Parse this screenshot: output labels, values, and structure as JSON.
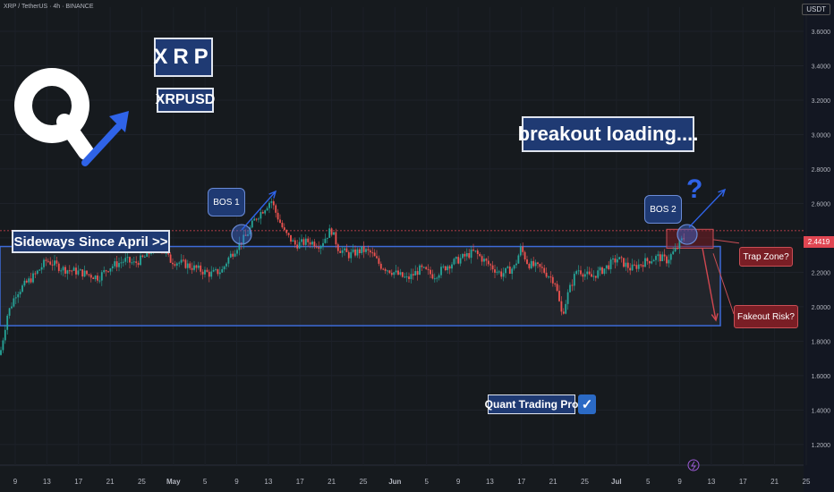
{
  "header": {
    "symbol_line": "XRP / TetherUS · 4h · BINANCE",
    "unit": "USDT"
  },
  "annotations": {
    "ticker_big": "XRP",
    "ticker_pair": "XRPUSD",
    "breakout": "breakout loading....",
    "sideways": "Sideways Since April >>",
    "bos1": "BOS 1",
    "bos2": "BOS 2",
    "question": "?",
    "trap_zone": "Trap Zone?",
    "fakeout": "Fakeout Risk?",
    "brand": "Quant Trading Pro",
    "check": "✓",
    "current_price": "2.4419"
  },
  "colors": {
    "background": "#161a1e",
    "bull": "#26a69a",
    "bear": "#ef5350",
    "range_line": "#3d6bd8",
    "label_fill": "#1f3a73",
    "trap_red": "#e04652",
    "arrow_blue": "#2f63e8"
  },
  "icons": [
    "q-logo-icon",
    "up-arrow-icon",
    "checkmark-icon",
    "lightning-icon"
  ],
  "chart_data": {
    "type": "candlestick",
    "timeframe": "4h",
    "y_ticks": [
      1.2,
      1.4,
      1.6,
      1.8,
      2.0,
      2.2,
      2.4,
      2.6,
      2.8,
      3.0,
      3.2,
      3.4,
      3.6
    ],
    "ylim": [
      1.08,
      3.74
    ],
    "x_ticks": [
      "9",
      "13",
      "17",
      "21",
      "25",
      "May",
      "5",
      "9",
      "13",
      "17",
      "21",
      "25",
      "Jun",
      "5",
      "9",
      "13",
      "17",
      "21",
      "25",
      "Jul",
      "5",
      "9",
      "13",
      "17",
      "21",
      "25"
    ],
    "range_box": {
      "upper": 2.35,
      "lower": 1.89
    },
    "current_price": 2.4419,
    "trap_zone": {
      "upper": 2.45,
      "lower": 2.34
    },
    "bos_levels": [
      2.42,
      2.42
    ],
    "price_path": [
      [
        0,
        1.72
      ],
      [
        8,
        1.95
      ],
      [
        18,
        2.08
      ],
      [
        40,
        2.19
      ],
      [
        52,
        2.27
      ],
      [
        70,
        2.22
      ],
      [
        90,
        2.2
      ],
      [
        110,
        2.17
      ],
      [
        122,
        2.23
      ],
      [
        140,
        2.27
      ],
      [
        150,
        2.25
      ],
      [
        165,
        2.3
      ],
      [
        175,
        2.38
      ],
      [
        190,
        2.27
      ],
      [
        205,
        2.25
      ],
      [
        220,
        2.22
      ],
      [
        235,
        2.19
      ],
      [
        248,
        2.21
      ],
      [
        255,
        2.28
      ],
      [
        265,
        2.35
      ],
      [
        275,
        2.41
      ],
      [
        285,
        2.51
      ],
      [
        295,
        2.57
      ],
      [
        303,
        2.62
      ],
      [
        308,
        2.55
      ],
      [
        318,
        2.43
      ],
      [
        330,
        2.36
      ],
      [
        345,
        2.38
      ],
      [
        358,
        2.36
      ],
      [
        370,
        2.45
      ],
      [
        378,
        2.34
      ],
      [
        390,
        2.3
      ],
      [
        405,
        2.33
      ],
      [
        415,
        2.31
      ],
      [
        425,
        2.24
      ],
      [
        440,
        2.2
      ],
      [
        455,
        2.16
      ],
      [
        470,
        2.22
      ],
      [
        485,
        2.18
      ],
      [
        500,
        2.24
      ],
      [
        515,
        2.28
      ],
      [
        530,
        2.32
      ],
      [
        545,
        2.25
      ],
      [
        560,
        2.19
      ],
      [
        575,
        2.23
      ],
      [
        582,
        2.34
      ],
      [
        590,
        2.25
      ],
      [
        605,
        2.22
      ],
      [
        620,
        2.15
      ],
      [
        628,
        1.95
      ],
      [
        635,
        2.08
      ],
      [
        645,
        2.22
      ],
      [
        660,
        2.17
      ],
      [
        675,
        2.22
      ],
      [
        690,
        2.28
      ],
      [
        705,
        2.22
      ],
      [
        720,
        2.26
      ],
      [
        735,
        2.29
      ],
      [
        745,
        2.27
      ],
      [
        755,
        2.33
      ],
      [
        765,
        2.41
      ]
    ]
  }
}
